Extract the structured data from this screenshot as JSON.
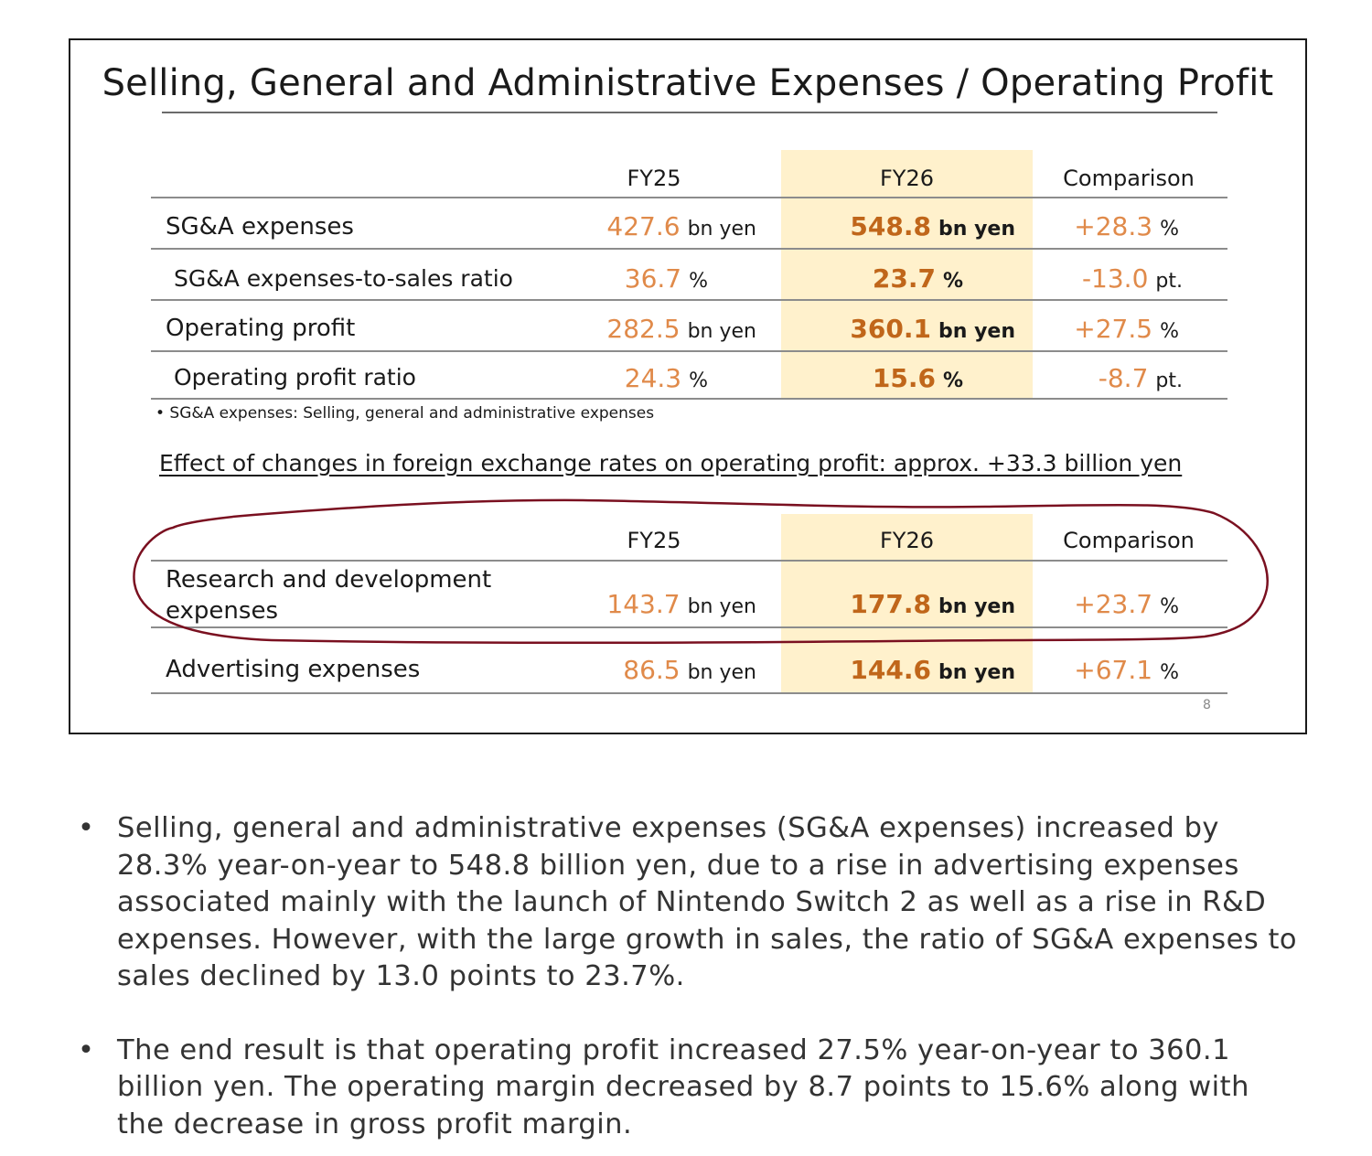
{
  "slide": {
    "title": "Selling, General and Administrative Expenses / Operating Profit",
    "headers": {
      "fy25": "FY25",
      "fy26": "FY26",
      "comparison": "Comparison"
    },
    "table1": [
      {
        "label": "SG&A expenses",
        "fy25_value": "427.6",
        "fy25_unit": "bn yen",
        "fy26_value": "548.8",
        "fy26_unit": "bn yen",
        "comp_value": "+28.3",
        "comp_unit": "%"
      },
      {
        "label": "SG&A expenses-to-sales ratio",
        "fy25_value": "36.7",
        "fy25_unit": "%",
        "fy26_value": "23.7",
        "fy26_unit": "%",
        "comp_value": "-13.0",
        "comp_unit": "pt."
      },
      {
        "label": "Operating profit",
        "fy25_value": "282.5",
        "fy25_unit": "bn yen",
        "fy26_value": "360.1",
        "fy26_unit": "bn yen",
        "comp_value": "+27.5",
        "comp_unit": "%"
      },
      {
        "label": "Operating profit ratio",
        "fy25_value": "24.3",
        "fy25_unit": "%",
        "fy26_value": "15.6",
        "fy26_unit": "%",
        "comp_value": "-8.7",
        "comp_unit": "pt."
      }
    ],
    "note": "•  SG&A expenses: Selling, general and administrative expenses",
    "fx_effect": "Effect of changes in foreign exchange rates on operating profit: approx. +33.3 billion yen",
    "table2": [
      {
        "label_line1": "Research and development",
        "label_line2": "expenses",
        "fy25_value": "143.7",
        "fy25_unit": "bn yen",
        "fy26_value": "177.8",
        "fy26_unit": "bn yen",
        "comp_value": "+23.7",
        "comp_unit": "%"
      },
      {
        "label": "Advertising expenses",
        "fy25_value": "86.5",
        "fy25_unit": "bn yen",
        "fy26_value": "144.6",
        "fy26_unit": "bn yen",
        "comp_value": "+67.1",
        "comp_unit": "%"
      }
    ],
    "page_number": "8"
  },
  "bullets": [
    "Selling, general and administrative expenses (SG&A expenses) increased by 28.3% year-on-year to 548.8 billion yen, due to a rise in advertising expenses associated mainly with the launch of Nintendo Switch 2 as well as a rise in R&D expenses. However, with the large growth in sales, the ratio of SG&A expenses to sales declined by 13.0 points to 23.7%.",
    "The end result is that operating profit increased 27.5% year-on-year to 360.1 billion yen. The operating margin decreased by 8.7 points to 15.6% along with the decrease in gross profit margin."
  ],
  "bullet_symbol": "•",
  "colors": {
    "fy25_value": "#e08a4a",
    "fy26_value": "#c0661a",
    "fy26_highlight": "#fff1cc",
    "annotation_circle": "#7a1020"
  }
}
